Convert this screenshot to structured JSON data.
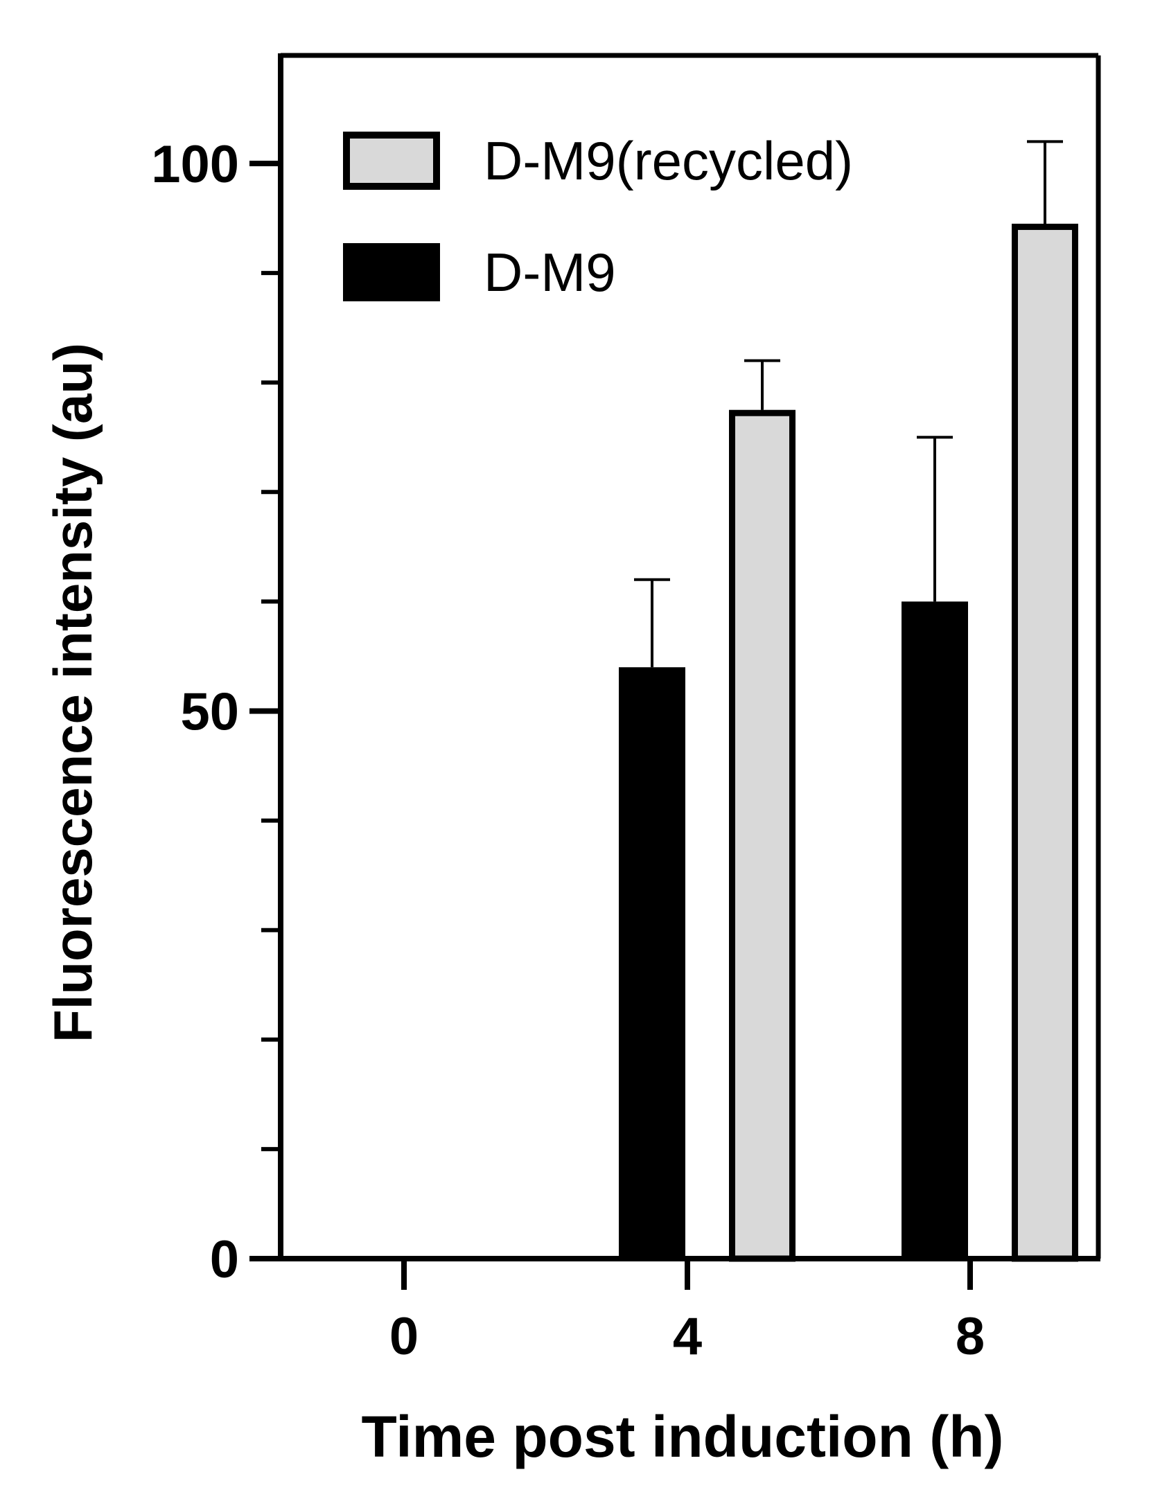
{
  "chart_data": {
    "type": "bar",
    "x_categories": [
      "0",
      "4",
      "8"
    ],
    "series": [
      {
        "name": "D-M9",
        "color": "#000000",
        "values": [
          null,
          54,
          60
        ],
        "errors": [
          null,
          8,
          15
        ]
      },
      {
        "name": "D-M9(recycled)",
        "color": "#d9d9d9",
        "values": [
          null,
          77.5,
          94.5
        ],
        "errors": [
          null,
          4.5,
          7.5
        ]
      }
    ],
    "xlabel": "Time post induction (h)",
    "ylabel": "Fluorescence intensity (au)",
    "ylim": [
      0,
      100
    ],
    "y_ticks_major": [
      0,
      50,
      100
    ],
    "y_ticks_minor": [
      10,
      20,
      30,
      40,
      60,
      70,
      80,
      90
    ],
    "legend_order": [
      "D-M9(recycled)",
      "D-M9"
    ],
    "legend_position": "top-left",
    "grid": false
  }
}
